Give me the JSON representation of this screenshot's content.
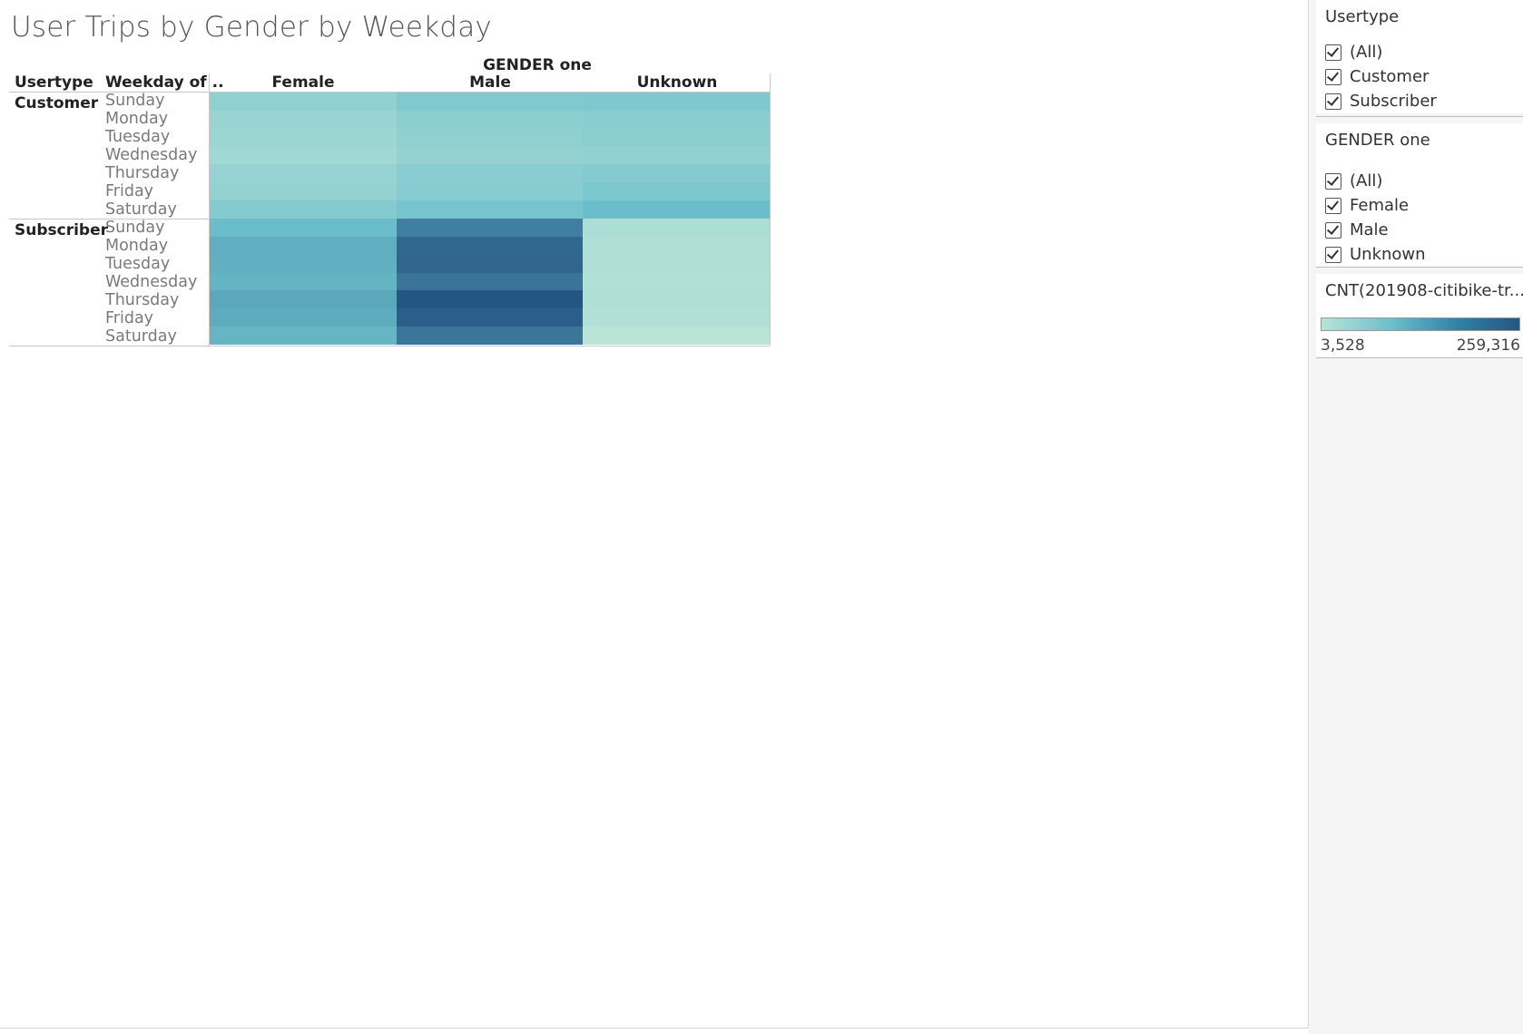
{
  "title": "User Trips by Gender by Weekday",
  "table": {
    "row_header_1": "Usertype",
    "row_header_2": "Weekday of ..",
    "column_group_header": "GENDER one",
    "columns": [
      "Female",
      "Male",
      "Unknown"
    ],
    "groups": [
      {
        "label": "Customer",
        "days": [
          "Sunday",
          "Monday",
          "Tuesday",
          "Wednesday",
          "Thursday",
          "Friday",
          "Saturday"
        ]
      },
      {
        "label": "Subscriber",
        "days": [
          "Sunday",
          "Monday",
          "Tuesday",
          "Wednesday",
          "Thursday",
          "Friday",
          "Saturday"
        ]
      }
    ]
  },
  "chart_data": {
    "type": "heatmap",
    "title": "User Trips by Gender by Weekday",
    "x_header": "GENDER one",
    "x": [
      "Female",
      "Male",
      "Unknown"
    ],
    "y_headers": [
      "Usertype",
      "Weekday of .."
    ],
    "y": [
      "Customer / Sunday",
      "Customer / Monday",
      "Customer / Tuesday",
      "Customer / Wednesday",
      "Customer / Thursday",
      "Customer / Friday",
      "Customer / Saturday",
      "Subscriber / Sunday",
      "Subscriber / Monday",
      "Subscriber / Tuesday",
      "Subscriber / Wednesday",
      "Subscriber / Thursday",
      "Subscriber / Friday",
      "Subscriber / Saturday"
    ],
    "values": [
      [
        22000,
        38000,
        40000
      ],
      [
        14000,
        26000,
        28000
      ],
      [
        12000,
        22000,
        26000
      ],
      [
        10000,
        18000,
        20000
      ],
      [
        16000,
        28000,
        34000
      ],
      [
        18000,
        30000,
        44000
      ],
      [
        34000,
        52000,
        70000
      ],
      [
        70000,
        170000,
        5000
      ],
      [
        90000,
        218000,
        4500
      ],
      [
        88000,
        222000,
        4200
      ],
      [
        82000,
        190000,
        4000
      ],
      [
        100000,
        259316,
        4300
      ],
      [
        94000,
        238000,
        3900
      ],
      [
        80000,
        188000,
        3528
      ]
    ],
    "color_range": [
      3528,
      259316
    ],
    "colors": {
      "low": "#b8e3d7",
      "mid": "#6cbfcc",
      "high": "#255683"
    }
  },
  "filters": [
    {
      "title": "Usertype",
      "items": [
        "(All)",
        "Customer",
        "Subscriber"
      ]
    },
    {
      "title": "GENDER one",
      "items": [
        "(All)",
        "Female",
        "Male",
        "Unknown"
      ]
    }
  ],
  "legend": {
    "title": "CNT(201908-citibike-tr...",
    "min_label": "3,528",
    "max_label": "259,316"
  }
}
